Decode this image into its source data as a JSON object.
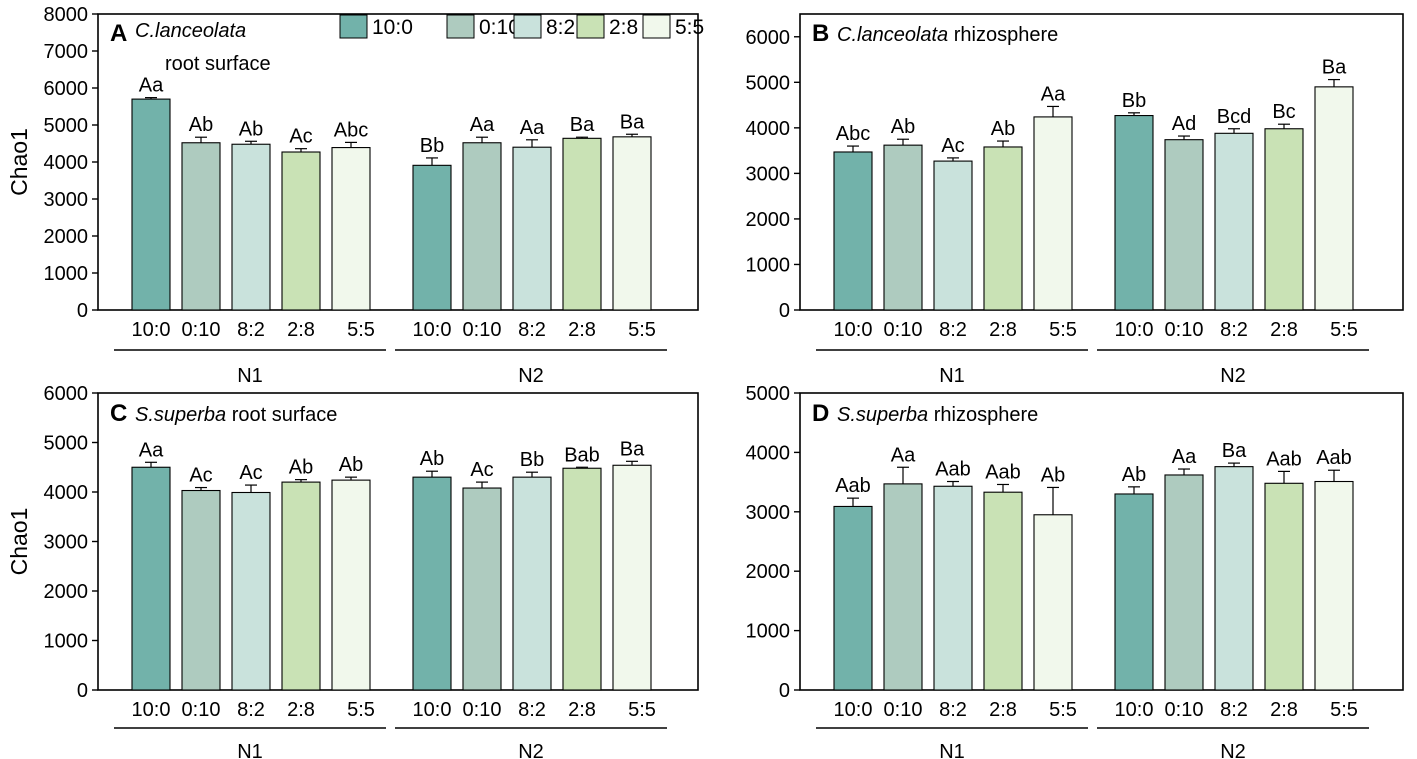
{
  "legend": [
    "10:0",
    "0:10",
    "8:2",
    "2:8",
    "5:5"
  ],
  "colors": [
    "#72b2aa",
    "#aecbbf",
    "#c9e2dc",
    "#c9e2b5",
    "#f1f8ec"
  ],
  "chart_data": [
    {
      "type": "bar",
      "panel": "A",
      "title_italic": "C.lanceolata",
      "title_rest": "",
      "title_line2": "root surface",
      "ylabel": "Chao1",
      "ylim": [
        0,
        8000
      ],
      "yticks": [
        0,
        1000,
        2000,
        3000,
        4000,
        5000,
        6000,
        7000,
        8000
      ],
      "groups": [
        "N1",
        "N2"
      ],
      "categories": [
        "10:0",
        "0:10",
        "8:2",
        "2:8",
        "5:5"
      ],
      "series": [
        {
          "group": "N1",
          "values": [
            5700,
            4520,
            4480,
            4270,
            4390
          ],
          "errors": [
            40,
            150,
            80,
            90,
            140
          ],
          "labels": [
            "Aa",
            "Ab",
            "Ab",
            "Ac",
            "Abc"
          ]
        },
        {
          "group": "N2",
          "values": [
            3910,
            4520,
            4400,
            4640,
            4680
          ],
          "errors": [
            200,
            150,
            200,
            30,
            70
          ],
          "labels": [
            "Bb",
            "Aa",
            "Aa",
            "Ba",
            "Ba"
          ]
        }
      ]
    },
    {
      "type": "bar",
      "panel": "B",
      "title_italic": "C.lanceolata",
      "title_rest": " rhizosphere",
      "title_line2": "",
      "ylabel": "",
      "ylim": [
        0,
        6500
      ],
      "yticks": [
        0,
        1000,
        2000,
        3000,
        4000,
        5000,
        6000
      ],
      "groups": [
        "N1",
        "N2"
      ],
      "categories": [
        "10:0",
        "0:10",
        "8:2",
        "2:8",
        "5:5"
      ],
      "series": [
        {
          "group": "N1",
          "values": [
            3470,
            3620,
            3270,
            3580,
            4240
          ],
          "errors": [
            130,
            130,
            70,
            130,
            230
          ],
          "labels": [
            "Abc",
            "Ab",
            "Ac",
            "Ab",
            "Aa"
          ]
        },
        {
          "group": "N2",
          "values": [
            4270,
            3740,
            3880,
            3980,
            4900
          ],
          "errors": [
            60,
            80,
            100,
            100,
            160
          ],
          "labels": [
            "Bb",
            "Ad",
            "Bcd",
            "Bc",
            "Ba"
          ]
        }
      ]
    },
    {
      "type": "bar",
      "panel": "C",
      "title_italic": "S.superba",
      "title_rest": " root surface",
      "title_line2": "",
      "ylabel": "Chao1",
      "ylim": [
        0,
        6000
      ],
      "yticks": [
        0,
        1000,
        2000,
        3000,
        4000,
        5000,
        6000
      ],
      "groups": [
        "N1",
        "N2"
      ],
      "categories": [
        "10:0",
        "0:10",
        "8:2",
        "2:8",
        "5:5"
      ],
      "series": [
        {
          "group": "N1",
          "values": [
            4500,
            4030,
            3990,
            4200,
            4240
          ],
          "errors": [
            100,
            60,
            150,
            50,
            60
          ],
          "labels": [
            "Aa",
            "Ac",
            "Ac",
            "Ab",
            "Ab"
          ]
        },
        {
          "group": "N2",
          "values": [
            4300,
            4080,
            4300,
            4480,
            4540
          ],
          "errors": [
            120,
            120,
            100,
            20,
            80
          ],
          "labels": [
            "Ab",
            "Ac",
            "Bb",
            "Bab",
            "Ba"
          ]
        }
      ]
    },
    {
      "type": "bar",
      "panel": "D",
      "title_italic": "S.superba",
      "title_rest": " rhizosphere",
      "title_line2": "",
      "ylabel": "",
      "ylim": [
        0,
        5000
      ],
      "yticks": [
        0,
        1000,
        2000,
        3000,
        4000,
        5000
      ],
      "groups": [
        "N1",
        "N2"
      ],
      "categories": [
        "10:0",
        "0:10",
        "8:2",
        "2:8",
        "5:5"
      ],
      "series": [
        {
          "group": "N1",
          "values": [
            3090,
            3470,
            3430,
            3330,
            2950
          ],
          "errors": [
            140,
            280,
            80,
            130,
            460
          ],
          "labels": [
            "Aab",
            "Aa",
            "Aab",
            "Aab",
            "Ab"
          ]
        },
        {
          "group": "N2",
          "values": [
            3300,
            3620,
            3760,
            3480,
            3510
          ],
          "errors": [
            120,
            100,
            60,
            200,
            190
          ],
          "labels": [
            "Ab",
            "Aa",
            "Ba",
            "Aab",
            "Aab"
          ]
        }
      ]
    }
  ]
}
